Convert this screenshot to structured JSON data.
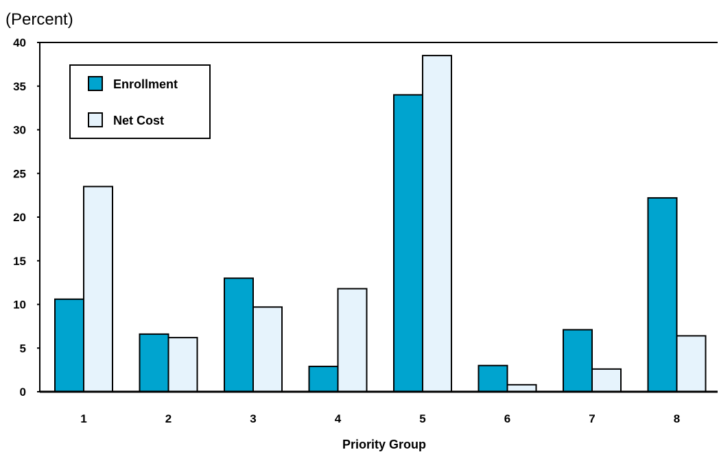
{
  "chart_data": {
    "type": "bar",
    "unit_label": "(Percent)",
    "xlabel": "Priority Group",
    "ylabel": "",
    "ylim": [
      0,
      40
    ],
    "yticks": [
      "0",
      "5",
      "10",
      "15",
      "20",
      "25",
      "30",
      "35",
      "40"
    ],
    "categories": [
      "1",
      "2",
      "3",
      "4",
      "5",
      "6",
      "7",
      "8"
    ],
    "series": [
      {
        "name": "Enrollment",
        "color": "#00a4cf",
        "values": [
          10.6,
          6.6,
          13.0,
          2.9,
          34.0,
          3.0,
          7.1,
          22.2
        ]
      },
      {
        "name": "Net Cost",
        "color": "#e6f3fc",
        "values": [
          23.5,
          6.2,
          9.7,
          11.8,
          38.5,
          0.8,
          2.6,
          6.4
        ]
      }
    ],
    "grid": false,
    "legend_position": "top-left"
  }
}
